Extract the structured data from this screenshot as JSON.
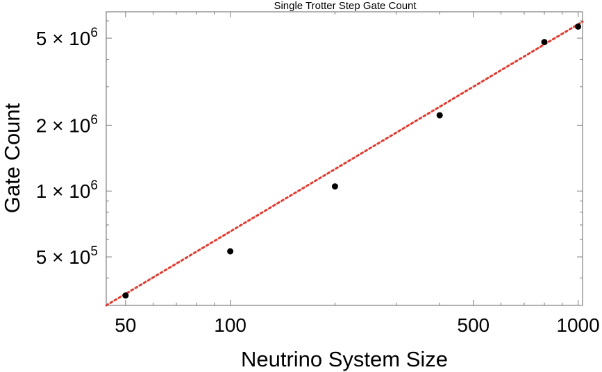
{
  "chart_data": {
    "type": "scatter",
    "title": "Single Trotter Step Gate Count",
    "xlabel": "Neutrino System Size",
    "ylabel": "Gate Count",
    "xscale": "log",
    "yscale": "log",
    "xlim": [
      44,
      1030
    ],
    "ylim": [
      300000,
      6600000
    ],
    "grid": false,
    "series": [
      {
        "points": [
          {
            "x": 50,
            "y": 333000
          },
          {
            "x": 100,
            "y": 530000
          },
          {
            "x": 200,
            "y": 1050000
          },
          {
            "x": 400,
            "y": 2220000
          },
          {
            "x": 800,
            "y": 4800000
          },
          {
            "x": 1000,
            "y": 5650000
          }
        ],
        "color": "#000000"
      },
      {
        "fit": "power-law",
        "points": [
          {
            "x": 44,
            "y": 300000
          },
          {
            "x": 1030,
            "y": 5950000
          }
        ],
        "color": "#e03c31",
        "style": "dotted"
      }
    ],
    "x_major_ticks": [
      {
        "value": 50,
        "label": "50"
      },
      {
        "value": 100,
        "label": "100"
      },
      {
        "value": 500,
        "label": "500"
      },
      {
        "value": 1000,
        "label": "1000"
      }
    ],
    "y_major_ticks": [
      {
        "value": 500000,
        "mant": "5",
        "times": "×",
        "base": "10",
        "exp": "5"
      },
      {
        "value": 1000000,
        "mant": "1",
        "times": "×",
        "base": "10",
        "exp": "6"
      },
      {
        "value": 2000000,
        "mant": "2",
        "times": "×",
        "base": "10",
        "exp": "6"
      },
      {
        "value": 5000000,
        "mant": "5",
        "times": "×",
        "base": "10",
        "exp": "6"
      }
    ]
  }
}
